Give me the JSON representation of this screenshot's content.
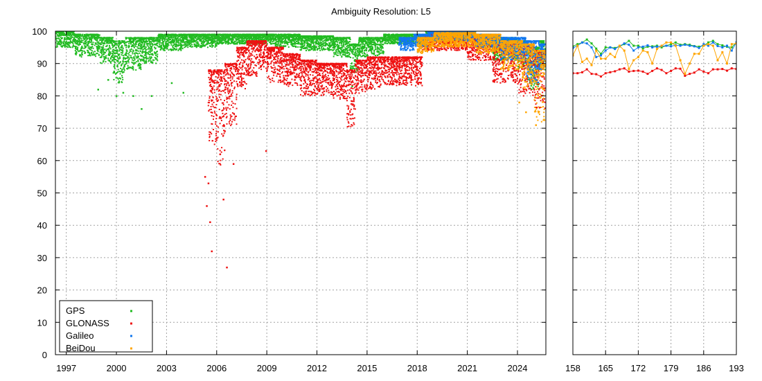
{
  "chart_data": {
    "title": "Ambiguity Resolution: L5",
    "type": "scatter",
    "y_ticks": [
      "0",
      "10",
      "20",
      "30",
      "40",
      "50",
      "60",
      "70",
      "80",
      "90",
      "100"
    ],
    "ylim": [
      0,
      100
    ],
    "grid": true,
    "legend_placement": "bottom-left",
    "colors": {
      "GPS": "#22bb22",
      "GLONASS": "#ee1111",
      "Galileo": "#1177ee",
      "BeiDou": "#ffa500"
    },
    "panels": [
      {
        "name": "long-term",
        "x_ticks": [
          "1997",
          "2000",
          "2003",
          "2006",
          "2009",
          "2012",
          "2015",
          "2018",
          "2021",
          "2024"
        ],
        "xlim": [
          1996.35,
          2025.7
        ],
        "series": [
          {
            "name": "GPS",
            "color": "#22bb22",
            "bands": [
              [
                1996.35,
                1997.5,
                95,
                100
              ],
              [
                1997.5,
                1999.0,
                92,
                99
              ],
              [
                1999.0,
                1999.8,
                90,
                98
              ],
              [
                1999.8,
                2000.5,
                84,
                97
              ],
              [
                2000.5,
                2001.5,
                88,
                98
              ],
              [
                2001.5,
                2002.5,
                90,
                98
              ],
              [
                2002.5,
                2004.0,
                94,
                99
              ],
              [
                2004.0,
                2006.0,
                95,
                99
              ],
              [
                2006.0,
                2008.0,
                96,
                99
              ],
              [
                2008.0,
                2009.5,
                96,
                99
              ],
              [
                2009.5,
                2011.0,
                95,
                99
              ],
              [
                2011.0,
                2013.0,
                94,
                98.5
              ],
              [
                2013.0,
                2014.0,
                92,
                98
              ],
              [
                2014.0,
                2014.5,
                87,
                96
              ],
              [
                2014.5,
                2016.0,
                92,
                98
              ],
              [
                2016.0,
                2018.5,
                96,
                99
              ],
              [
                2018.5,
                2021.5,
                97,
                100
              ],
              [
                2021.5,
                2022.5,
                95,
                99
              ],
              [
                2022.5,
                2024.0,
                91,
                98
              ],
              [
                2024.0,
                2024.6,
                88,
                97
              ],
              [
                2024.6,
                2025.3,
                82,
                95
              ],
              [
                2025.3,
                2025.65,
                88,
                97
              ]
            ],
            "outliers": [
              [
                1998.9,
                82
              ],
              [
                1999.5,
                85
              ],
              [
                2000.0,
                80
              ],
              [
                2000.4,
                81
              ],
              [
                2001.0,
                80
              ],
              [
                2001.5,
                76
              ],
              [
                2002.1,
                80
              ],
              [
                2003.3,
                84
              ],
              [
                2004.0,
                81
              ],
              [
                2014.1,
                83
              ]
            ]
          },
          {
            "name": "GLONASS",
            "color": "#ee1111",
            "bands": [
              [
                2005.5,
                2006.0,
                65,
                88
              ],
              [
                2006.0,
                2006.5,
                58,
                88
              ],
              [
                2006.5,
                2007.2,
                70,
                90
              ],
              [
                2007.2,
                2007.8,
                82,
                95
              ],
              [
                2007.8,
                2008.5,
                86,
                97
              ],
              [
                2008.5,
                2009.0,
                88,
                97
              ],
              [
                2009.0,
                2010.0,
                84,
                95
              ],
              [
                2010.0,
                2011.0,
                83,
                93
              ],
              [
                2011.0,
                2012.0,
                80,
                91
              ],
              [
                2012.0,
                2013.0,
                80,
                90
              ],
              [
                2013.0,
                2013.8,
                79,
                90
              ],
              [
                2013.8,
                2014.3,
                70,
                88
              ],
              [
                2014.3,
                2015.0,
                80,
                91
              ],
              [
                2015.0,
                2016.0,
                82,
                92
              ],
              [
                2016.0,
                2018.3,
                83,
                92
              ],
              [
                2018.3,
                2021.0,
                94,
                99
              ],
              [
                2021.0,
                2022.5,
                91,
                98
              ],
              [
                2022.5,
                2024.0,
                84,
                96
              ],
              [
                2024.0,
                2025.0,
                80,
                96
              ],
              [
                2025.0,
                2025.65,
                76,
                94
              ]
            ],
            "outliers": [
              [
                2005.3,
                55
              ],
              [
                2005.4,
                46
              ],
              [
                2005.5,
                53
              ],
              [
                2005.6,
                41
              ],
              [
                2005.7,
                32
              ],
              [
                2006.4,
                48
              ],
              [
                2006.6,
                27
              ],
              [
                2006.2,
                62
              ],
              [
                2006.0,
                67
              ],
              [
                2007.0,
                59
              ],
              [
                2008.95,
                63
              ]
            ]
          },
          {
            "name": "Galileo",
            "color": "#1177ee",
            "bands": [
              [
                2016.9,
                2017.8,
                94,
                98
              ],
              [
                2017.8,
                2018.6,
                95,
                99
              ],
              [
                2018.6,
                2021.5,
                97,
                100
              ],
              [
                2021.5,
                2023.0,
                95,
                99
              ],
              [
                2023.0,
                2024.5,
                91,
                98
              ],
              [
                2024.5,
                2025.3,
                84,
                97
              ],
              [
                2025.3,
                2025.65,
                88,
                96
              ]
            ],
            "outliers": []
          },
          {
            "name": "BeiDou",
            "color": "#ffa500",
            "bands": [
              [
                2018.0,
                2019.0,
                93,
                98
              ],
              [
                2019.0,
                2021.5,
                95,
                99.5
              ],
              [
                2021.5,
                2023.0,
                93,
                99
              ],
              [
                2023.0,
                2024.3,
                88,
                97
              ],
              [
                2024.3,
                2025.0,
                82,
                96
              ],
              [
                2025.0,
                2025.65,
                72,
                94
              ]
            ],
            "outliers": [
              [
                2024.1,
                78
              ],
              [
                2024.5,
                75
              ],
              [
                2025.1,
                71
              ]
            ]
          }
        ]
      },
      {
        "name": "recent",
        "x_ticks": [
          "158",
          "165",
          "172",
          "179",
          "186",
          "193"
        ],
        "xlim": [
          158,
          193
        ],
        "series": [
          {
            "name": "GPS",
            "color": "#22bb22",
            "x": [
              158,
              159,
              160,
              161,
              162,
              163,
              164,
              165,
              166,
              167,
              168,
              169,
              170,
              171,
              172,
              173,
              174,
              175,
              176,
              177,
              178,
              179,
              180,
              181,
              182,
              183,
              184,
              185,
              186,
              187,
              188,
              189,
              190,
              191,
              192,
              193
            ],
            "y": [
              95.3,
              96,
              96.5,
              97.4,
              96.2,
              94.6,
              93,
              95,
              95,
              94.8,
              95.3,
              96,
              97,
              95.5,
              95.5,
              94.7,
              95.2,
              95.3,
              95.5,
              95,
              95.5,
              96,
              96.5,
              95.8,
              96,
              95.8,
              95.4,
              95.2,
              95.5,
              96.5,
              97,
              96,
              95.6,
              95.2,
              95,
              96.5
            ]
          },
          {
            "name": "GLONASS",
            "color": "#ee1111",
            "x": [
              158,
              159,
              160,
              161,
              162,
              163,
              164,
              165,
              166,
              167,
              168,
              169,
              170,
              171,
              172,
              173,
              174,
              175,
              176,
              177,
              178,
              179,
              180,
              181,
              182,
              183,
              184,
              185,
              186,
              187,
              188,
              189,
              190,
              191,
              192,
              193
            ],
            "y": [
              87,
              87,
              87.3,
              88.2,
              86.8,
              86.7,
              86,
              87,
              87.3,
              87.6,
              88.2,
              88.5,
              87.5,
              87.7,
              87.8,
              87.5,
              86.8,
              87.7,
              88.5,
              88,
              87,
              87.7,
              88.5,
              88.4,
              86.2,
              86.8,
              87.2,
              88.2,
              87.5,
              87,
              88.2,
              88.2,
              88.3,
              87.8,
              88.5,
              88.3
            ]
          },
          {
            "name": "Galileo",
            "color": "#1177ee",
            "x": [
              158,
              159,
              160,
              161,
              162,
              163,
              164,
              165,
              166,
              167,
              168,
              169,
              170,
              171,
              172,
              173,
              174,
              175,
              176,
              177,
              178,
              179,
              180,
              181,
              182,
              183,
              184,
              185,
              186,
              187,
              188,
              189,
              190,
              191,
              192,
              193
            ],
            "y": [
              94.8,
              95.5,
              96.5,
              96.2,
              95,
              92,
              92.5,
              94,
              95,
              94.5,
              95.4,
              96.2,
              95.8,
              94,
              95,
              95.2,
              95.6,
              95,
              95.2,
              95.4,
              95.5,
              95.3,
              95.7,
              95.5,
              95.8,
              95.5,
              95.3,
              94.8,
              96,
              95.5,
              96.5,
              95.4,
              95,
              95.5,
              94,
              96.5
            ]
          },
          {
            "name": "BeiDou",
            "color": "#ffa500",
            "x": [
              158,
              159,
              160,
              161,
              162,
              163,
              164,
              165,
              166,
              167,
              168,
              169,
              170,
              171,
              172,
              173,
              174,
              175,
              176,
              177,
              178,
              179,
              180,
              181,
              182,
              183,
              184,
              185,
              186,
              187,
              188,
              189,
              190,
              191,
              192,
              193
            ],
            "y": [
              92.5,
              95.5,
              90.5,
              91.5,
              89.5,
              94,
              91.5,
              91.5,
              93,
              92,
              95.5,
              94,
              88.3,
              91,
              92,
              94,
              93.5,
              90,
              94.5,
              95.5,
              96.5,
              96.5,
              95.5,
              91,
              86.8,
              90,
              93,
              93,
              95.5,
              96,
              95.5,
              91,
              93.5,
              90,
              96,
              96.2
            ]
          }
        ]
      }
    ]
  }
}
